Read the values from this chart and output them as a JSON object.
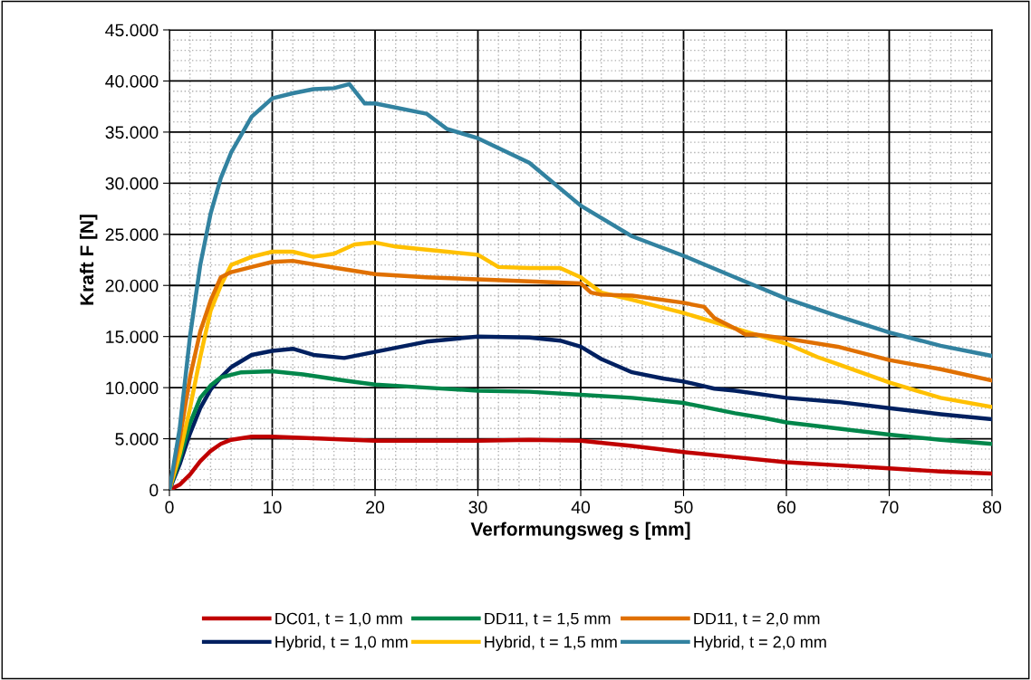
{
  "chart_data": {
    "type": "line",
    "xlabel": "Verformungsweg s [mm]",
    "ylabel": "Kraft F [N]",
    "xlim": [
      0,
      80
    ],
    "xticks": [
      0,
      10,
      20,
      30,
      40,
      50,
      60,
      70,
      80
    ],
    "ylim": [
      0,
      45000
    ],
    "yticks": [
      {
        "value": 0,
        "label": "0"
      },
      {
        "value": 5000,
        "label": "5.000"
      },
      {
        "value": 10000,
        "label": "10.000"
      },
      {
        "value": 15000,
        "label": "15.000"
      },
      {
        "value": 20000,
        "label": "20.000"
      },
      {
        "value": 25000,
        "label": "25.000"
      },
      {
        "value": 30000,
        "label": "30.000"
      },
      {
        "value": 35000,
        "label": "35.000"
      },
      {
        "value": 40000,
        "label": "40.000"
      },
      {
        "value": 45000,
        "label": "45.000"
      }
    ],
    "grid": true,
    "legend": "bottom",
    "marker": "none",
    "line_style": "solid",
    "series": [
      {
        "name": "DC01, t = 1,0 mm",
        "color": "#c00000",
        "x": [
          0,
          1,
          2,
          3,
          4,
          5,
          6,
          8,
          10,
          15,
          20,
          30,
          35,
          40,
          45,
          50,
          55,
          60,
          65,
          70,
          75,
          80
        ],
        "values": [
          0,
          500,
          1500,
          2800,
          3800,
          4500,
          4900,
          5200,
          5200,
          5000,
          4800,
          4800,
          4900,
          4800,
          4300,
          3700,
          3200,
          2700,
          2400,
          2100,
          1800,
          1600
        ]
      },
      {
        "name": "Hybrid, t = 1,0 mm",
        "color": "#002060",
        "x": [
          0,
          1,
          2,
          3,
          4,
          5,
          6,
          8,
          10,
          12,
          14,
          17,
          20,
          25,
          30,
          35,
          38,
          40,
          42,
          45,
          48,
          50,
          53,
          55,
          60,
          65,
          70,
          75,
          80
        ],
        "values": [
          0,
          2500,
          5500,
          8000,
          9800,
          11000,
          12000,
          13200,
          13600,
          13800,
          13200,
          12900,
          13500,
          14500,
          15000,
          14900,
          14600,
          14000,
          12800,
          11500,
          10900,
          10600,
          9900,
          9700,
          9000,
          8600,
          8000,
          7400,
          6900
        ]
      },
      {
        "name": "DD11, t = 1,5 mm",
        "color": "#00864a",
        "x": [
          0,
          1,
          2,
          3,
          4,
          5,
          7,
          10,
          13,
          17,
          20,
          25,
          30,
          35,
          40,
          45,
          50,
          55,
          58,
          60,
          65,
          70,
          75,
          80
        ],
        "values": [
          0,
          3000,
          6500,
          9000,
          10200,
          11000,
          11500,
          11600,
          11300,
          10700,
          10300,
          10000,
          9700,
          9600,
          9300,
          9000,
          8500,
          7500,
          7000,
          6600,
          6000,
          5400,
          4900,
          4500
        ]
      },
      {
        "name": "Hybrid, t = 1,5 mm",
        "color": "#ffc000",
        "x": [
          0,
          1,
          2,
          3,
          4,
          5,
          6,
          8,
          10,
          12,
          14,
          16,
          18,
          20,
          22,
          25,
          27,
          30,
          32,
          35,
          38,
          40,
          42,
          45,
          50,
          55,
          60,
          63,
          65,
          70,
          75,
          80
        ],
        "values": [
          0,
          3500,
          8000,
          13000,
          17500,
          20000,
          22000,
          22800,
          23300,
          23300,
          22800,
          23100,
          24000,
          24200,
          23800,
          23500,
          23300,
          23000,
          21800,
          21700,
          21700,
          20800,
          19300,
          18600,
          17300,
          15800,
          14300,
          13000,
          12300,
          10500,
          9000,
          8100
        ]
      },
      {
        "name": "DD11, t = 2,0 mm",
        "color": "#e07000",
        "x": [
          0,
          1,
          2,
          3,
          4,
          5,
          6,
          8,
          10,
          12,
          15,
          20,
          25,
          30,
          35,
          40,
          41,
          42,
          45,
          50,
          52,
          53,
          55,
          56,
          57,
          60,
          65,
          70,
          75,
          80
        ],
        "values": [
          0,
          5000,
          11000,
          15500,
          18500,
          20800,
          21300,
          21800,
          22300,
          22400,
          21900,
          21100,
          20800,
          20600,
          20400,
          20200,
          19300,
          19100,
          19000,
          18300,
          17900,
          16800,
          15800,
          15200,
          15200,
          14800,
          14000,
          12700,
          11800,
          10700
        ]
      },
      {
        "name": "Hybrid, t = 2,0 mm",
        "color": "#3282a0",
        "x": [
          0,
          1,
          2,
          3,
          4,
          5,
          6,
          8,
          10,
          12,
          14,
          16,
          17.5,
          19,
          20,
          25,
          27,
          30,
          35,
          40,
          45,
          50,
          55,
          60,
          65,
          70,
          75,
          80
        ],
        "values": [
          0,
          6000,
          15000,
          22000,
          27000,
          30500,
          33000,
          36500,
          38300,
          38800,
          39200,
          39300,
          39700,
          37800,
          37800,
          36800,
          35300,
          34400,
          32000,
          27800,
          24800,
          22900,
          20800,
          18700,
          17000,
          15400,
          14100,
          13100
        ]
      }
    ]
  }
}
